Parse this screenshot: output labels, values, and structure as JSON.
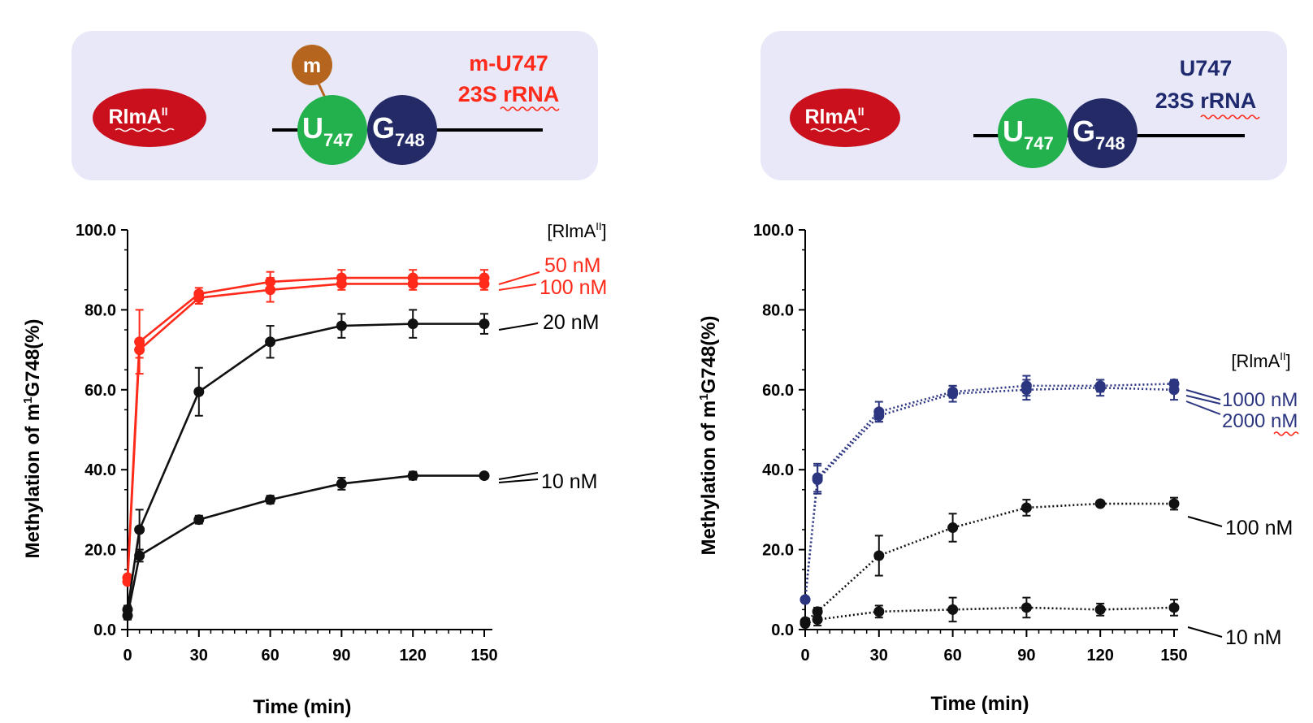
{
  "panels": [
    {
      "id": "left",
      "box": {
        "enzyme": "RlmA",
        "enzyme_sup": "II",
        "methyl": "m",
        "u_base": "U",
        "u_pos": "747",
        "g_base": "G",
        "g_pos": "748",
        "title_line1": "m-U747",
        "title_line2_prefix": "23S ",
        "title_line2_word": "rRNA",
        "title_color": "#ff2a1a"
      }
    },
    {
      "id": "right",
      "box": {
        "enzyme": "RlmA",
        "enzyme_sup": "II",
        "u_base": "U",
        "u_pos": "747",
        "g_base": "G",
        "g_pos": "748",
        "title_line1": "U747",
        "title_line2_prefix": "23S ",
        "title_line2_word": "rRNA",
        "title_color": "#1f2a6e"
      }
    }
  ],
  "colors": {
    "box_bg": "#e8e8f8",
    "enzyme": "#c9101c",
    "u_circle": "#22b14c",
    "g_circle": "#232a66",
    "methyl": "#b5651d",
    "red_series": "#ff2a1a",
    "navy_series": "#2c3580",
    "black_series": "#111111"
  },
  "chart_data": [
    {
      "type": "line",
      "panel": "left",
      "ylabel_prefix": "Methylation of m",
      "ylabel_sup": "1",
      "ylabel_suffix": "G748(%)",
      "xlabel": "Time (min)",
      "ylim": [
        0,
        100
      ],
      "yticks": [
        "0.0",
        "20.0",
        "40.0",
        "60.0",
        "80.0",
        "100.0"
      ],
      "xlim": [
        0,
        150
      ],
      "xticks": [
        "0",
        "30",
        "60",
        "90",
        "120",
        "150"
      ],
      "legend_title": "[RlmA",
      "legend_title_sup": "II",
      "legend_title_end": "]",
      "x": [
        0,
        5,
        30,
        60,
        90,
        120,
        150
      ],
      "series": [
        {
          "name": "50 nM",
          "color": "red",
          "style": "solid",
          "values": [
            13,
            72,
            84,
            87,
            88,
            88,
            88
          ],
          "errors": [
            0,
            8,
            1.5,
            2.5,
            2,
            2,
            2
          ]
        },
        {
          "name": "100 nM",
          "color": "red",
          "style": "solid",
          "values": [
            12,
            70,
            83,
            85,
            86.5,
            86.5,
            86.5
          ],
          "errors": [
            0,
            2,
            1.5,
            3,
            1.5,
            1.5,
            1.5
          ]
        },
        {
          "name": "20 nM",
          "color": "black",
          "style": "solid",
          "values": [
            5,
            25,
            59.5,
            72,
            76,
            76.5,
            76.5
          ],
          "errors": [
            1,
            5,
            6,
            4,
            3,
            3.5,
            2.5
          ]
        },
        {
          "name": "10 nM",
          "color": "black",
          "style": "solid",
          "values": [
            3.5,
            18.5,
            27.5,
            32.5,
            36.5,
            38.5,
            38.5
          ],
          "errors": [
            1,
            1.5,
            1,
            1,
            1.5,
            1,
            0.5
          ]
        }
      ]
    },
    {
      "type": "line",
      "panel": "right",
      "ylabel_prefix": "Methylation of m",
      "ylabel_sup": "1",
      "ylabel_suffix": "G748(%)",
      "xlabel": "Time (min)",
      "ylim": [
        0,
        100
      ],
      "yticks": [
        "0.0",
        "20.0",
        "40.0",
        "60.0",
        "80.0",
        "100.0"
      ],
      "xlim": [
        0,
        150
      ],
      "xticks": [
        "0",
        "30",
        "60",
        "90",
        "120",
        "150"
      ],
      "legend_title": "[RlmA",
      "legend_title_sup": "II",
      "legend_title_end": "]",
      "x": [
        0,
        5,
        30,
        60,
        90,
        120,
        150
      ],
      "series": [
        {
          "name": "1000 nM",
          "color": "navy",
          "style": "dotted",
          "values": [
            7.5,
            38,
            54.5,
            59.5,
            61,
            61,
            61.5
          ],
          "errors": [
            0.5,
            3.5,
            2.5,
            1.5,
            2.5,
            1.5,
            1
          ]
        },
        {
          "name": "2000 nM",
          "color": "navy",
          "style": "dotted",
          "values": [
            7.5,
            37.5,
            53.5,
            59,
            60,
            60.5,
            60
          ],
          "errors": [
            0.5,
            3.5,
            1.5,
            2,
            2.5,
            2,
            2.5
          ]
        },
        {
          "name": "100 nM",
          "color": "black",
          "style": "dotted",
          "values": [
            2,
            4.5,
            18.5,
            25.5,
            30.5,
            31.5,
            31.5
          ],
          "errors": [
            0.5,
            1,
            5,
            3.5,
            2,
            0.5,
            1.5
          ]
        },
        {
          "name": "10 nM",
          "color": "black",
          "style": "dotted",
          "values": [
            1.5,
            2.5,
            4.5,
            5,
            5.5,
            5,
            5.5
          ],
          "errors": [
            0.5,
            1.5,
            1.5,
            3,
            2.5,
            1.5,
            2
          ]
        }
      ]
    }
  ]
}
